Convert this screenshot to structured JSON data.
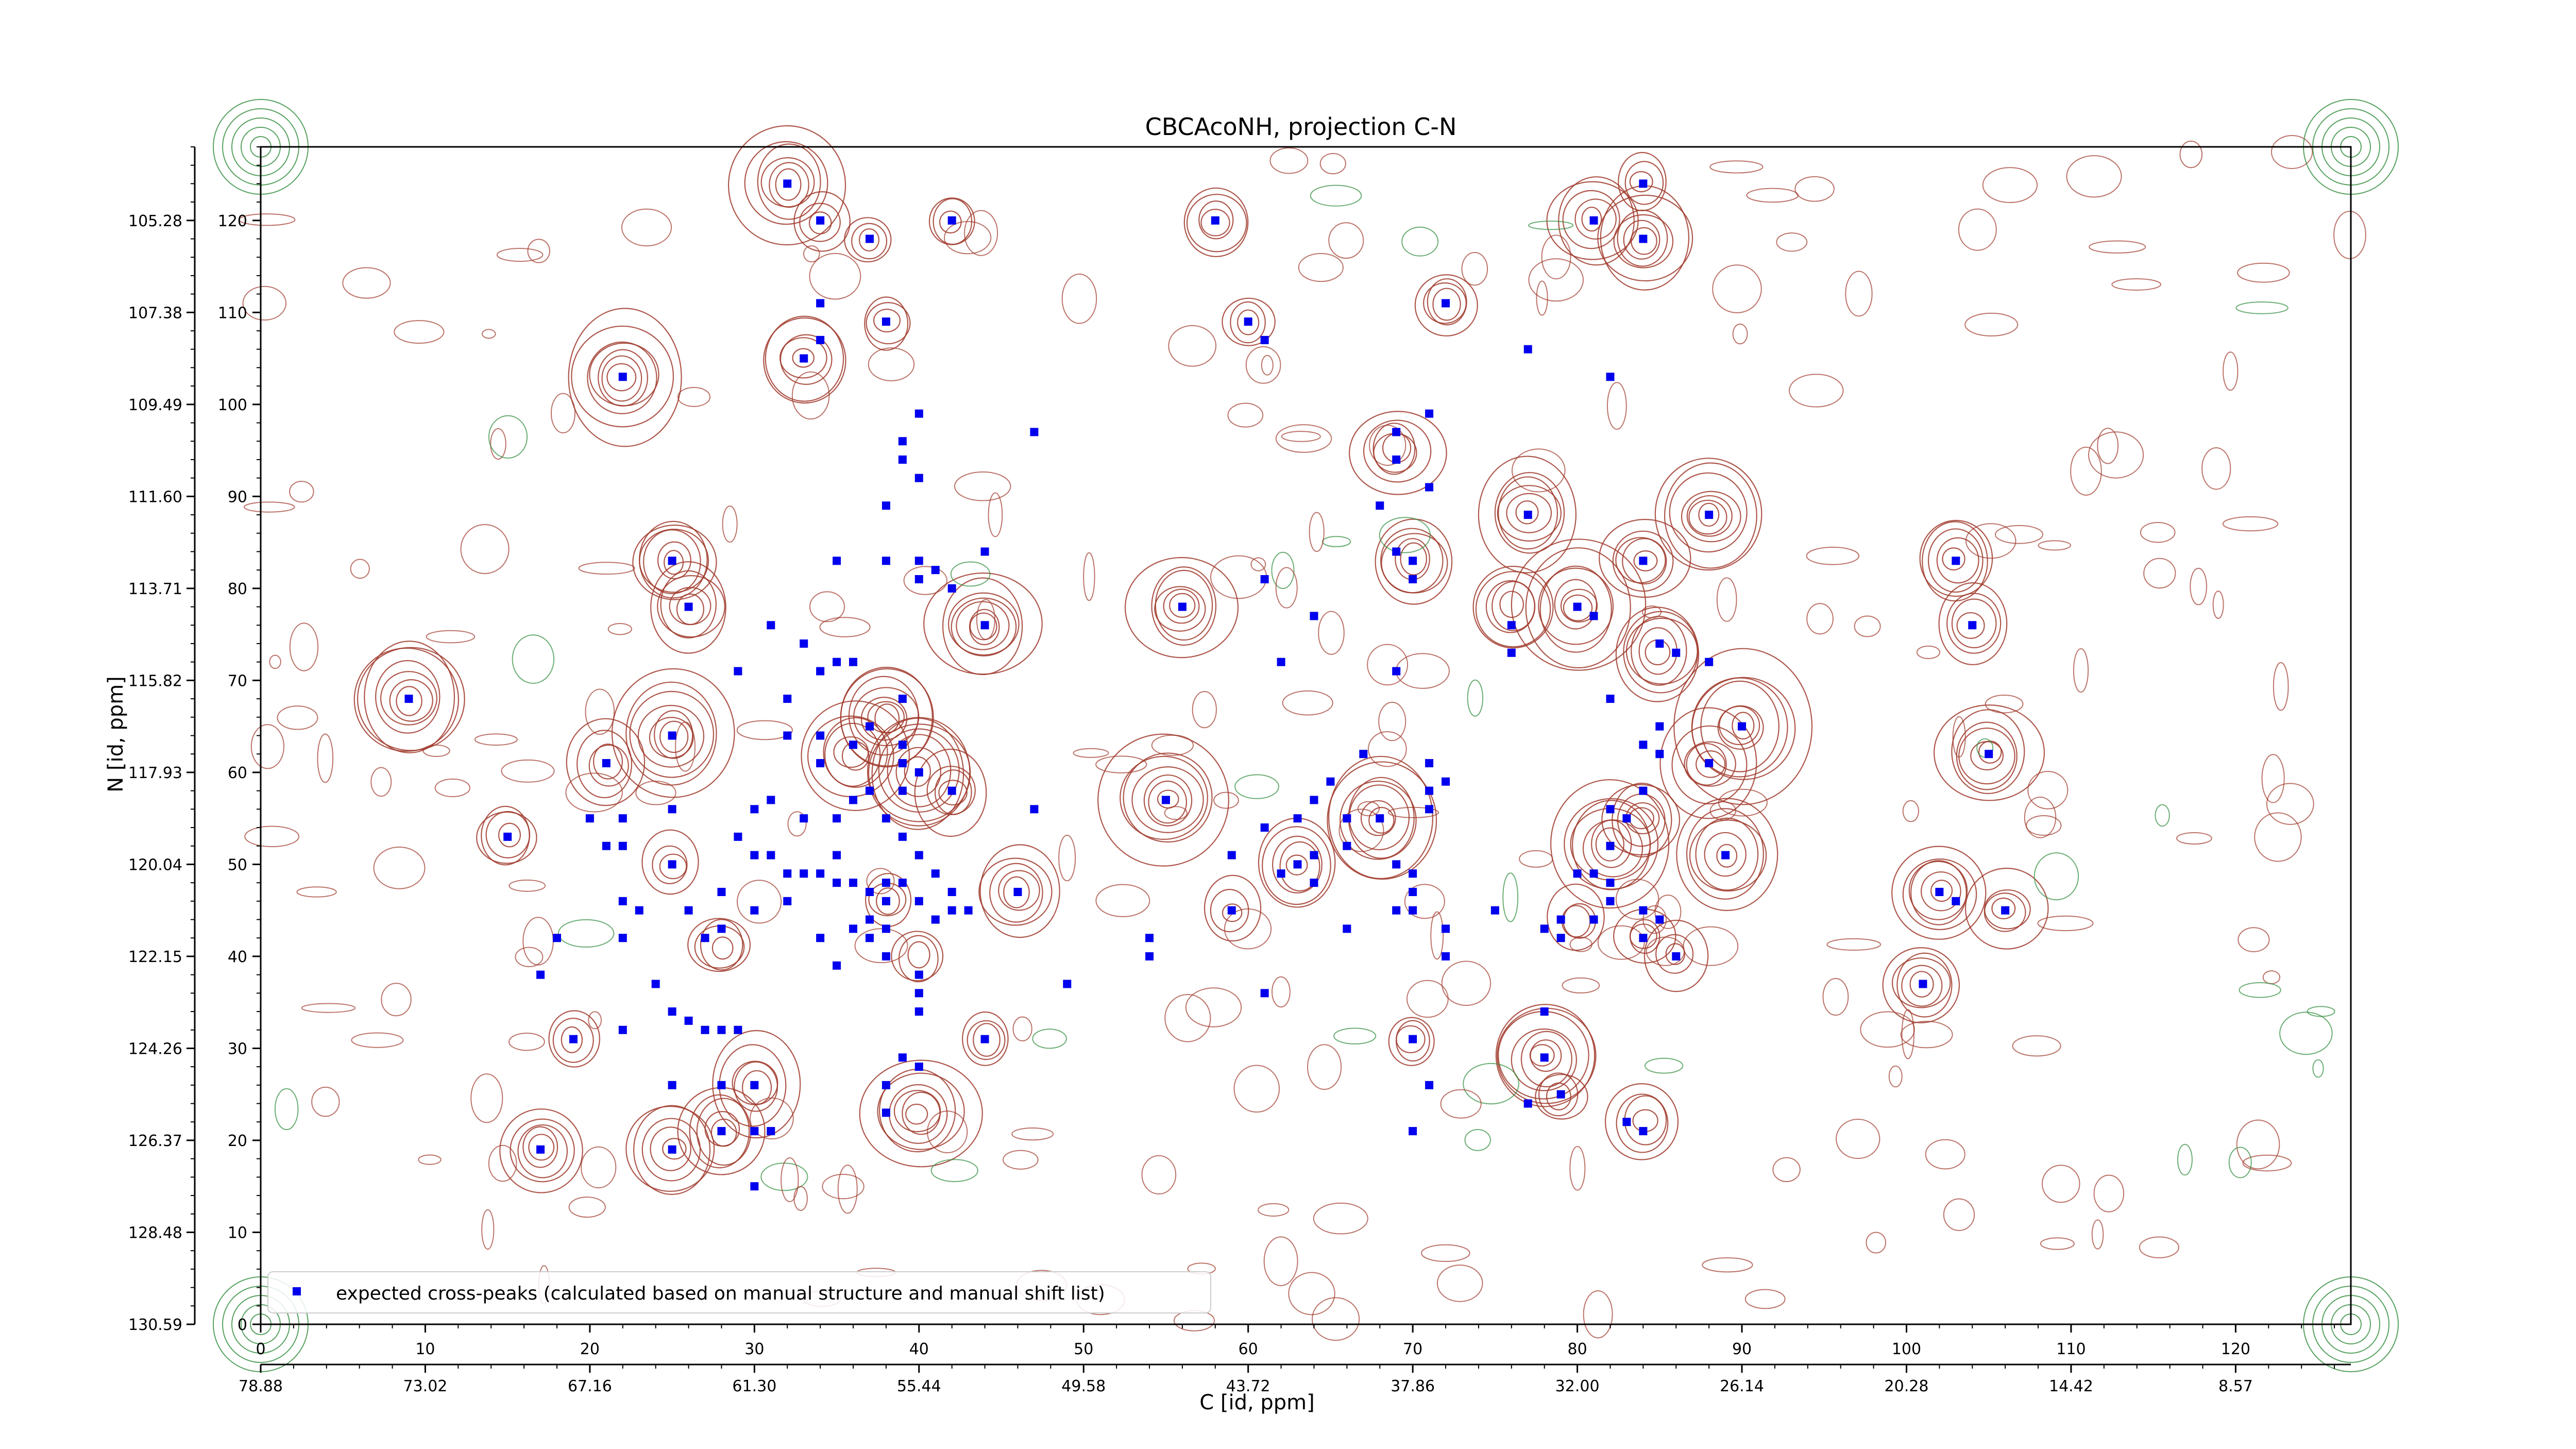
{
  "chart_data": {
    "type": "scatter",
    "title": "CBCAcoNH, projection C-N",
    "xlabel": "C [id, ppm]",
    "ylabel": "N [id, ppm]",
    "index_x_range": [
      0,
      127
    ],
    "index_y_range": [
      0,
      128
    ],
    "ppm_x_ticks": [
      "78.88",
      "73.02",
      "67.16",
      "61.30",
      "55.44",
      "49.58",
      "43.72",
      "37.86",
      "32.00",
      "26.14",
      "20.28",
      "14.42",
      "8.57"
    ],
    "ppm_x_tick_positions": [
      0,
      10,
      20,
      30,
      40,
      50,
      60,
      70,
      80,
      90,
      100,
      110,
      120
    ],
    "index_x_ticks": [
      "0",
      "10",
      "20",
      "30",
      "40",
      "50",
      "60",
      "70",
      "80",
      "90",
      "100",
      "110",
      "120"
    ],
    "ppm_y_ticks": [
      "130.59",
      "128.48",
      "126.37",
      "124.26",
      "122.15",
      "120.04",
      "117.93",
      "115.82",
      "113.71",
      "111.60",
      "109.49",
      "107.38",
      "105.28"
    ],
    "ppm_y_tick_positions": [
      0,
      10,
      20,
      30,
      40,
      50,
      60,
      70,
      80,
      90,
      100,
      110,
      120
    ],
    "index_y_ticks": [
      "0",
      "10",
      "20",
      "30",
      "40",
      "50",
      "60",
      "70",
      "80",
      "90",
      "100",
      "110",
      "120"
    ],
    "legend": {
      "position": "bottom-left",
      "label": "expected cross-peaks (calculated based on manual structure and manual shift list)"
    },
    "contour_colors": {
      "positive": "#a0392b",
      "negative": "#2e8b3a"
    },
    "marker_color": "#0000ee",
    "series": [
      {
        "name": "expected cross-peaks (calculated based on manual structure and manual shift list)",
        "points": [
          [
            32,
            124
          ],
          [
            34,
            120
          ],
          [
            37,
            118
          ],
          [
            42,
            120
          ],
          [
            58,
            120
          ],
          [
            81,
            120
          ],
          [
            84,
            118
          ],
          [
            84,
            124
          ],
          [
            34,
            111
          ],
          [
            38,
            109
          ],
          [
            33,
            105
          ],
          [
            34,
            107
          ],
          [
            60,
            109
          ],
          [
            61,
            107
          ],
          [
            72,
            111
          ],
          [
            77,
            106
          ],
          [
            82,
            103
          ],
          [
            22,
            103
          ],
          [
            40,
            99
          ],
          [
            39,
            96
          ],
          [
            39,
            94
          ],
          [
            40,
            92
          ],
          [
            38,
            89
          ],
          [
            47,
            97
          ],
          [
            71,
            99
          ],
          [
            69,
            97
          ],
          [
            69,
            94
          ],
          [
            68,
            89
          ],
          [
            71,
            91
          ],
          [
            77,
            88
          ],
          [
            88,
            88
          ],
          [
            25,
            83
          ],
          [
            26,
            78
          ],
          [
            35,
            83
          ],
          [
            38,
            83
          ],
          [
            40,
            83
          ],
          [
            41,
            82
          ],
          [
            42,
            80
          ],
          [
            44,
            84
          ],
          [
            40,
            81
          ],
          [
            44,
            76
          ],
          [
            56,
            78
          ],
          [
            61,
            81
          ],
          [
            64,
            77
          ],
          [
            62,
            72
          ],
          [
            69,
            84
          ],
          [
            70,
            83
          ],
          [
            70,
            81
          ],
          [
            69,
            71
          ],
          [
            76,
            76
          ],
          [
            76,
            73
          ],
          [
            80,
            78
          ],
          [
            81,
            77
          ],
          [
            84,
            83
          ],
          [
            82,
            68
          ],
          [
            85,
            74
          ],
          [
            86,
            73
          ],
          [
            88,
            72
          ],
          [
            103,
            83
          ],
          [
            104,
            76
          ],
          [
            9,
            68
          ],
          [
            25,
            64
          ],
          [
            21,
            61
          ],
          [
            29,
            71
          ],
          [
            31,
            76
          ],
          [
            33,
            74
          ],
          [
            32,
            68
          ],
          [
            34,
            71
          ],
          [
            35,
            72
          ],
          [
            36,
            72
          ],
          [
            39,
            68
          ],
          [
            32,
            64
          ],
          [
            34,
            64
          ],
          [
            34,
            61
          ],
          [
            36,
            63
          ],
          [
            37,
            65
          ],
          [
            39,
            61
          ],
          [
            39,
            63
          ],
          [
            40,
            60
          ],
          [
            42,
            58
          ],
          [
            37,
            58
          ],
          [
            39,
            58
          ],
          [
            38,
            55
          ],
          [
            36,
            57
          ],
          [
            35,
            55
          ],
          [
            33,
            55
          ],
          [
            31,
            57
          ],
          [
            30,
            56
          ],
          [
            29,
            53
          ],
          [
            30,
            51
          ],
          [
            31,
            51
          ],
          [
            32,
            49
          ],
          [
            33,
            49
          ],
          [
            34,
            49
          ],
          [
            35,
            48
          ],
          [
            36,
            48
          ],
          [
            37,
            47
          ],
          [
            38,
            48
          ],
          [
            39,
            48
          ],
          [
            40,
            51
          ],
          [
            41,
            49
          ],
          [
            40,
            46
          ],
          [
            41,
            44
          ],
          [
            42,
            45
          ],
          [
            43,
            45
          ],
          [
            42,
            47
          ],
          [
            46,
            47
          ],
          [
            47,
            56
          ],
          [
            39,
            53
          ],
          [
            35,
            51
          ],
          [
            105,
            62
          ],
          [
            103,
            46
          ],
          [
            106,
            45
          ],
          [
            15,
            53
          ],
          [
            20,
            55
          ],
          [
            22,
            55
          ],
          [
            21,
            52
          ],
          [
            22,
            52
          ],
          [
            25,
            56
          ],
          [
            25,
            50
          ],
          [
            22,
            46
          ],
          [
            23,
            45
          ],
          [
            26,
            45
          ],
          [
            28,
            47
          ],
          [
            28,
            43
          ],
          [
            27,
            42
          ],
          [
            30,
            45
          ],
          [
            32,
            46
          ],
          [
            34,
            42
          ],
          [
            35,
            39
          ],
          [
            36,
            43
          ],
          [
            37,
            44
          ],
          [
            37,
            42
          ],
          [
            38,
            43
          ],
          [
            38,
            46
          ],
          [
            38,
            40
          ],
          [
            40,
            38
          ],
          [
            40,
            36
          ],
          [
            40,
            34
          ],
          [
            24,
            37
          ],
          [
            25,
            34
          ],
          [
            26,
            33
          ],
          [
            27,
            32
          ],
          [
            28,
            32
          ],
          [
            29,
            32
          ],
          [
            22,
            32
          ],
          [
            22,
            42
          ],
          [
            18,
            42
          ],
          [
            17,
            38
          ],
          [
            54,
            42
          ],
          [
            54,
            40
          ],
          [
            55,
            57
          ],
          [
            59,
            51
          ],
          [
            61,
            54
          ],
          [
            62,
            49
          ],
          [
            64,
            51
          ],
          [
            63,
            50
          ],
          [
            64,
            48
          ],
          [
            63,
            55
          ],
          [
            64,
            57
          ],
          [
            65,
            59
          ],
          [
            66,
            55
          ],
          [
            67,
            62
          ],
          [
            66,
            43
          ],
          [
            66,
            52
          ],
          [
            68,
            55
          ],
          [
            69,
            50
          ],
          [
            70,
            49
          ],
          [
            70,
            47
          ],
          [
            69,
            45
          ],
          [
            70,
            45
          ],
          [
            71,
            58
          ],
          [
            71,
            61
          ],
          [
            71,
            56
          ],
          [
            72,
            59
          ],
          [
            72,
            43
          ],
          [
            72,
            40
          ],
          [
            75,
            45
          ],
          [
            78,
            43
          ],
          [
            79,
            44
          ],
          [
            79,
            42
          ],
          [
            80,
            49
          ],
          [
            81,
            49
          ],
          [
            82,
            48
          ],
          [
            82,
            46
          ],
          [
            81,
            44
          ],
          [
            82,
            56
          ],
          [
            82,
            52
          ],
          [
            83,
            55
          ],
          [
            84,
            58
          ],
          [
            84,
            63
          ],
          [
            85,
            65
          ],
          [
            85,
            62
          ],
          [
            84,
            45
          ],
          [
            84,
            42
          ],
          [
            85,
            44
          ],
          [
            86,
            40
          ],
          [
            88,
            61
          ],
          [
            89,
            51
          ],
          [
            90,
            65
          ],
          [
            61,
            36
          ],
          [
            59,
            45
          ],
          [
            78,
            34
          ],
          [
            78,
            29
          ],
          [
            79,
            25
          ],
          [
            77,
            24
          ],
          [
            70,
            31
          ],
          [
            71,
            26
          ],
          [
            70,
            21
          ],
          [
            83,
            22
          ],
          [
            84,
            21
          ],
          [
            101,
            37
          ],
          [
            102,
            47
          ],
          [
            19,
            31
          ],
          [
            17,
            19
          ],
          [
            25,
            19
          ],
          [
            25,
            26
          ],
          [
            28,
            26
          ],
          [
            30,
            26
          ],
          [
            28,
            21
          ],
          [
            30,
            21
          ],
          [
            31,
            21
          ],
          [
            30,
            15
          ],
          [
            38,
            26
          ],
          [
            38,
            23
          ],
          [
            40,
            28
          ],
          [
            39,
            29
          ],
          [
            44,
            31
          ],
          [
            49,
            37
          ]
        ]
      }
    ],
    "contour_groups": [
      [
        32,
        124
      ],
      [
        34,
        120
      ],
      [
        37,
        118
      ],
      [
        42,
        120
      ],
      [
        58,
        120
      ],
      [
        81,
        120
      ],
      [
        84,
        118
      ],
      [
        84,
        124
      ],
      [
        22,
        103
      ],
      [
        33,
        105
      ],
      [
        38,
        109
      ],
      [
        72,
        111
      ],
      [
        60,
        109
      ],
      [
        25,
        83
      ],
      [
        26,
        78
      ],
      [
        44,
        76
      ],
      [
        56,
        78
      ],
      [
        76,
        78
      ],
      [
        80,
        78
      ],
      [
        84,
        83
      ],
      [
        103,
        83
      ],
      [
        104,
        76
      ],
      [
        25,
        64
      ],
      [
        21,
        61
      ],
      [
        40,
        60
      ],
      [
        42,
        58
      ],
      [
        36,
        62
      ],
      [
        38,
        66
      ],
      [
        15,
        53
      ],
      [
        25,
        50
      ],
      [
        28,
        41
      ],
      [
        38,
        46
      ],
      [
        40,
        40
      ],
      [
        46,
        47
      ],
      [
        44,
        31
      ],
      [
        40,
        23
      ],
      [
        30,
        26
      ],
      [
        28,
        21
      ],
      [
        19,
        31
      ],
      [
        17,
        19
      ],
      [
        25,
        19
      ],
      [
        55,
        57
      ],
      [
        59,
        45
      ],
      [
        63,
        50
      ],
      [
        68,
        55
      ],
      [
        70,
        31
      ],
      [
        78,
        29
      ],
      [
        79,
        25
      ],
      [
        84,
        22
      ],
      [
        80,
        44
      ],
      [
        84,
        42
      ],
      [
        86,
        40
      ],
      [
        84,
        55
      ],
      [
        82,
        52
      ],
      [
        85,
        73
      ],
      [
        88,
        61
      ],
      [
        89,
        51
      ],
      [
        90,
        65
      ],
      [
        101,
        37
      ],
      [
        102,
        47
      ],
      [
        106,
        45
      ],
      [
        105,
        62
      ],
      [
        69,
        95
      ],
      [
        70,
        83
      ],
      [
        77,
        88
      ],
      [
        88,
        88
      ],
      [
        9,
        68
      ]
    ]
  }
}
